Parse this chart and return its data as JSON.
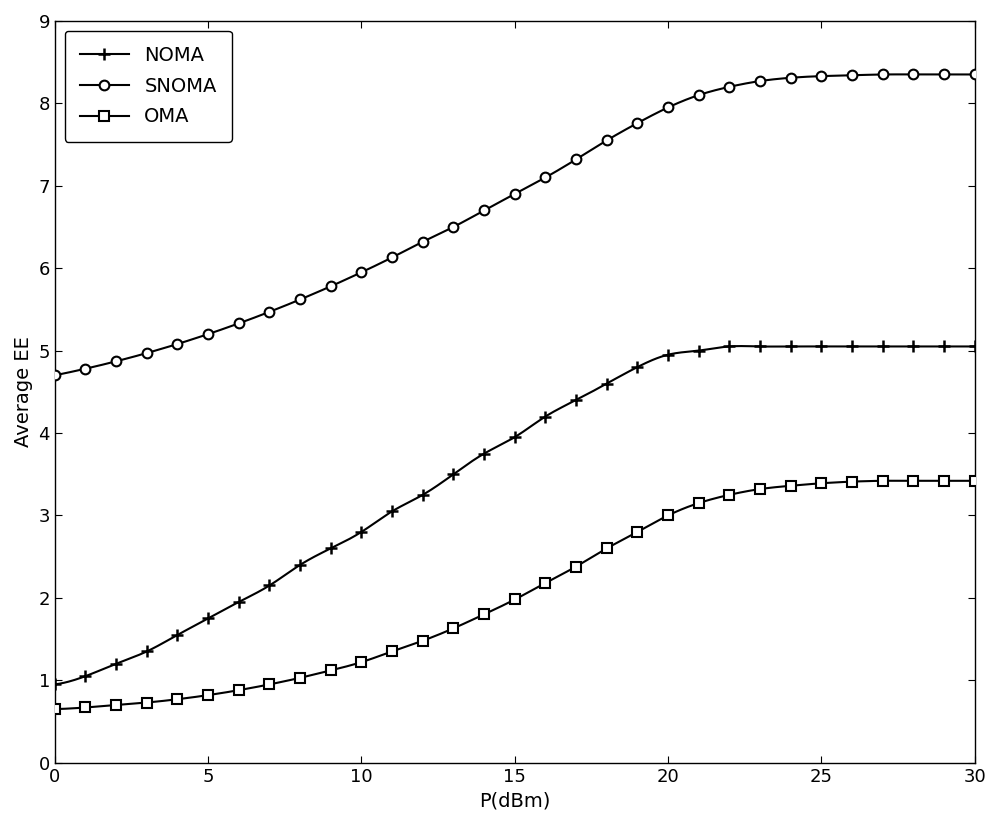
{
  "xlim": [
    0,
    30
  ],
  "ylim": [
    0,
    9
  ],
  "xlabel": "P(dBm)",
  "ylabel": "Average EE",
  "yticks": [
    0,
    1,
    2,
    3,
    4,
    5,
    6,
    7,
    8,
    9
  ],
  "xticks": [
    0,
    5,
    10,
    15,
    20,
    25,
    30
  ],
  "line_color": "#000000",
  "bg_color": "#ffffff",
  "legend_labels": [
    "NOMA",
    "SNOMA",
    "OMA"
  ],
  "noma_x": [
    0,
    1,
    2,
    3,
    4,
    5,
    6,
    7,
    8,
    9,
    10,
    11,
    12,
    13,
    14,
    15,
    16,
    17,
    18,
    19,
    20,
    21,
    22,
    23,
    24,
    25,
    26,
    27,
    28,
    29,
    30
  ],
  "noma_y": [
    0.95,
    1.05,
    1.2,
    1.35,
    1.55,
    1.75,
    1.95,
    2.15,
    2.4,
    2.6,
    2.8,
    3.05,
    3.25,
    3.5,
    3.75,
    3.95,
    4.2,
    4.4,
    4.6,
    4.8,
    4.95,
    5.0,
    5.05,
    5.05,
    5.05,
    5.05,
    5.05,
    5.05,
    5.05,
    5.05,
    5.05
  ],
  "snoma_x": [
    0,
    1,
    2,
    3,
    4,
    5,
    6,
    7,
    8,
    9,
    10,
    11,
    12,
    13,
    14,
    15,
    16,
    17,
    18,
    19,
    20,
    21,
    22,
    23,
    24,
    25,
    26,
    27,
    28,
    29,
    30
  ],
  "snoma_y": [
    4.7,
    4.78,
    4.87,
    4.97,
    5.08,
    5.2,
    5.33,
    5.47,
    5.62,
    5.78,
    5.95,
    6.13,
    6.32,
    6.5,
    6.7,
    6.9,
    7.1,
    7.32,
    7.55,
    7.76,
    7.95,
    8.1,
    8.2,
    8.27,
    8.31,
    8.33,
    8.34,
    8.35,
    8.35,
    8.35,
    8.35
  ],
  "oma_x": [
    0,
    1,
    2,
    3,
    4,
    5,
    6,
    7,
    8,
    9,
    10,
    11,
    12,
    13,
    14,
    15,
    16,
    17,
    18,
    19,
    20,
    21,
    22,
    23,
    24,
    25,
    26,
    27,
    28,
    29,
    30
  ],
  "oma_y": [
    0.65,
    0.67,
    0.7,
    0.73,
    0.77,
    0.82,
    0.88,
    0.95,
    1.03,
    1.12,
    1.22,
    1.35,
    1.48,
    1.63,
    1.8,
    1.98,
    2.18,
    2.38,
    2.6,
    2.8,
    3.0,
    3.15,
    3.25,
    3.32,
    3.36,
    3.39,
    3.41,
    3.42,
    3.42,
    3.42,
    3.42
  ],
  "marker_x": [
    0,
    1,
    2,
    3,
    4,
    5,
    6,
    7,
    8,
    9,
    10,
    11,
    12,
    13,
    14,
    15,
    16,
    17,
    18,
    19,
    20,
    21,
    22,
    23,
    24,
    25,
    26,
    27,
    28,
    29,
    30
  ]
}
